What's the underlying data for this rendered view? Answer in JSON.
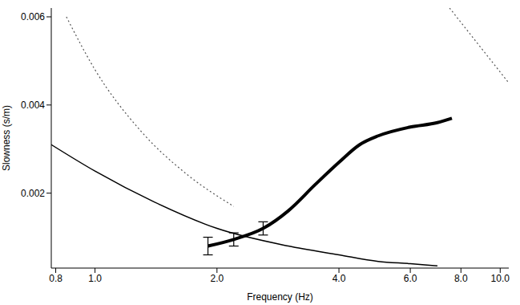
{
  "chart_data": {
    "type": "line",
    "log": "x",
    "grid": false,
    "x_label": "Frequency (Hz)",
    "y_label": "Slowness (s/m)",
    "xlim": [
      0.78,
      10.5
    ],
    "ylim": [
      0.0003,
      0.0062
    ],
    "xticks": [
      0.8,
      {
        "value": 1,
        "label": "1.0"
      },
      {
        "value": 2,
        "label": "2.0"
      },
      {
        "value": 4,
        "label": "4.0"
      },
      {
        "value": 6,
        "label": "6.0"
      },
      {
        "value": 8,
        "label": "8.0"
      },
      {
        "value": 10,
        "label": "10.0"
      }
    ],
    "yticks": [
      0.002,
      0.004,
      0.006
    ],
    "series": [
      {
        "color": "#000000",
        "line_style": "thick",
        "x": [
          1.9,
          2.2,
          2.6,
          3.0,
          3.5,
          4.0,
          4.5,
          5.0,
          6.0,
          7.0,
          7.6
        ],
        "values": [
          0.0008,
          0.00095,
          0.0012,
          0.0016,
          0.0022,
          0.0027,
          0.0031,
          0.0033,
          0.0035,
          0.0036,
          0.0037
        ],
        "errors": [
          0.0002,
          0.00015,
          0.00015,
          null,
          null,
          null,
          null,
          null,
          null,
          null,
          null
        ]
      },
      {
        "color": "#000000",
        "line_style": "solid",
        "x": [
          0.78,
          1.0,
          1.4,
          2.0,
          3.0,
          4.0,
          5.0,
          6.0,
          7.0
        ],
        "values": [
          0.0031,
          0.0025,
          0.0018,
          0.0012,
          0.0008,
          0.0006,
          0.00045,
          0.0004,
          0.00035
        ]
      },
      {
        "color": "#555555",
        "line_style": "dotted",
        "x": [
          0.85,
          1.0,
          1.3,
          1.7,
          2.2
        ],
        "values": [
          0.006,
          0.0048,
          0.0034,
          0.0024,
          0.0017
        ]
      },
      {
        "color": "#555555",
        "line_style": "dotted",
        "x": [
          7.5,
          10.5
        ],
        "values": [
          0.0062,
          0.0045
        ]
      }
    ]
  }
}
